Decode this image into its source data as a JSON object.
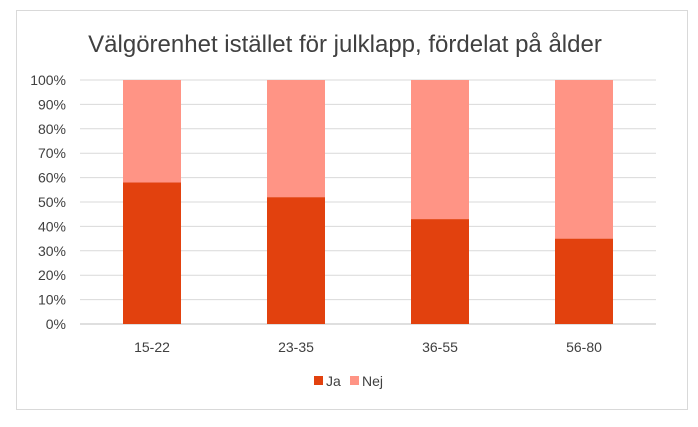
{
  "chart_data": {
    "type": "bar",
    "stacked": true,
    "title": "Välgörenhet istället för julklapp, fördelat på ålder",
    "categories": [
      "15-22",
      "23-35",
      "36-55",
      "56-80"
    ],
    "series": [
      {
        "name": "Ja",
        "values": [
          58,
          52,
          43,
          35
        ],
        "color": "#e2410e"
      },
      {
        "name": "Nej",
        "values": [
          42,
          48,
          57,
          65
        ],
        "color": "#ff9485"
      }
    ],
    "ylim": [
      0,
      100
    ],
    "y_ticks": [
      "0%",
      "10%",
      "20%",
      "30%",
      "40%",
      "50%",
      "60%",
      "70%",
      "80%",
      "90%",
      "100%"
    ],
    "grid": true,
    "legend": "bottom"
  }
}
